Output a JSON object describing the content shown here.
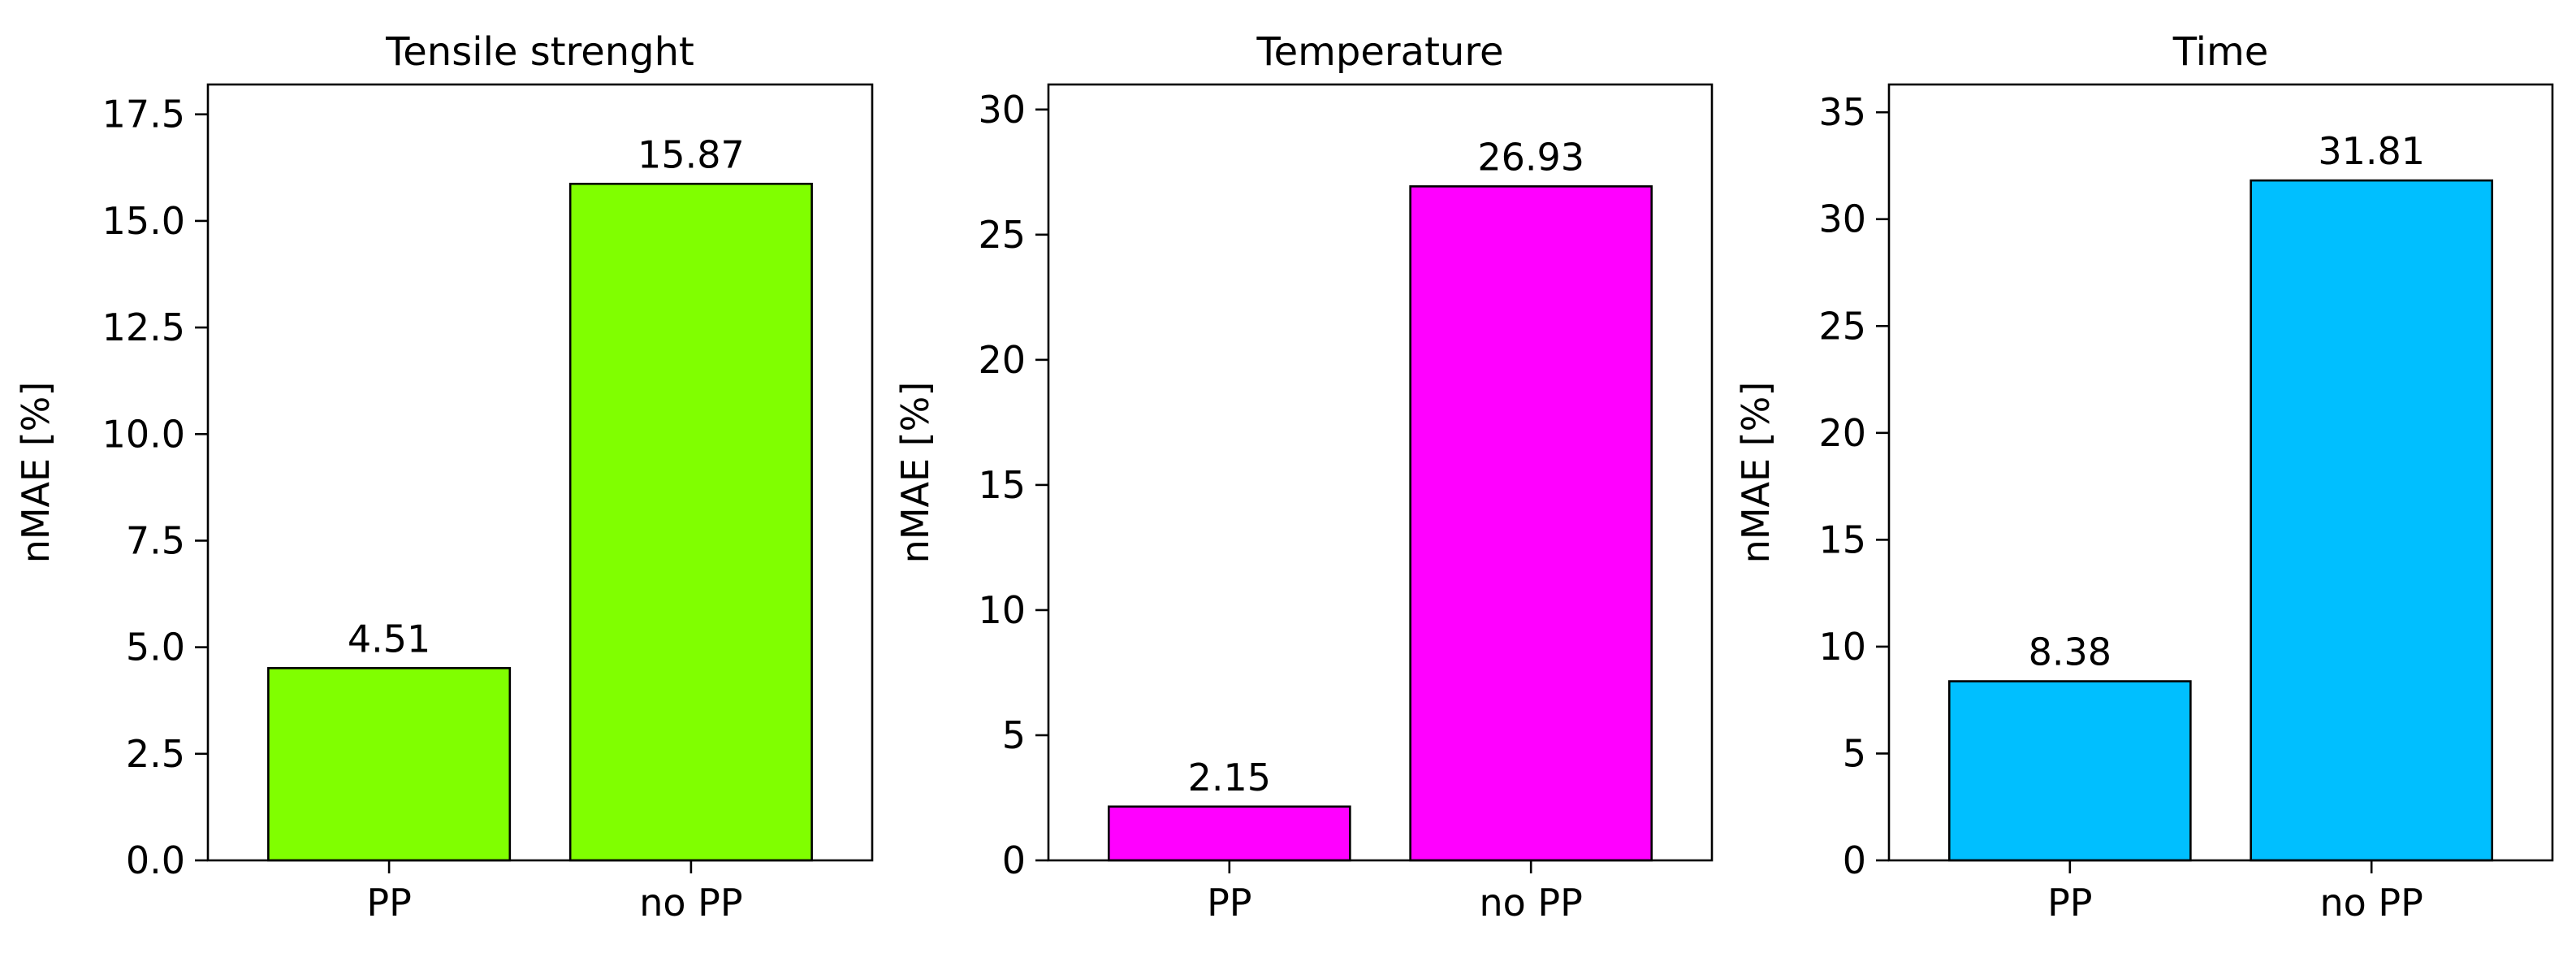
{
  "chart_data": [
    {
      "type": "bar",
      "title": "Tensile strenght",
      "xlabel": "",
      "ylabel": "nMAE [%]",
      "categories": [
        "PP",
        "no PP"
      ],
      "values": [
        4.51,
        15.87
      ],
      "value_labels": [
        "4.51",
        "15.87"
      ],
      "ylim": [
        0,
        18.2
      ],
      "yticks": [
        0,
        2.5,
        5,
        7.5,
        10,
        12.5,
        15,
        17.5
      ],
      "ytick_labels": [
        "0.0",
        "2.5",
        "5.0",
        "7.5",
        "10.0",
        "12.5",
        "15.0",
        "17.5"
      ],
      "color": "#80ff00",
      "grid": false
    },
    {
      "type": "bar",
      "title": "Temperature",
      "xlabel": "",
      "ylabel": "nMAE [%]",
      "categories": [
        "PP",
        "no PP"
      ],
      "values": [
        2.15,
        26.93
      ],
      "value_labels": [
        "2.15",
        "26.93"
      ],
      "ylim": [
        0,
        31
      ],
      "yticks": [
        0,
        5,
        10,
        15,
        20,
        25,
        30
      ],
      "ytick_labels": [
        "0",
        "5",
        "10",
        "15",
        "20",
        "25",
        "30"
      ],
      "color": "#ff00ff",
      "grid": false
    },
    {
      "type": "bar",
      "title": "Time",
      "xlabel": "",
      "ylabel": "nMAE [%]",
      "categories": [
        "PP",
        "no PP"
      ],
      "values": [
        8.38,
        31.81
      ],
      "value_labels": [
        "8.38",
        "31.81"
      ],
      "ylim": [
        0,
        36.3
      ],
      "yticks": [
        0,
        5,
        10,
        15,
        20,
        25,
        30,
        35
      ],
      "ytick_labels": [
        "0",
        "5",
        "10",
        "15",
        "20",
        "25",
        "30",
        "35"
      ],
      "color": "#00bfff",
      "grid": false
    }
  ]
}
